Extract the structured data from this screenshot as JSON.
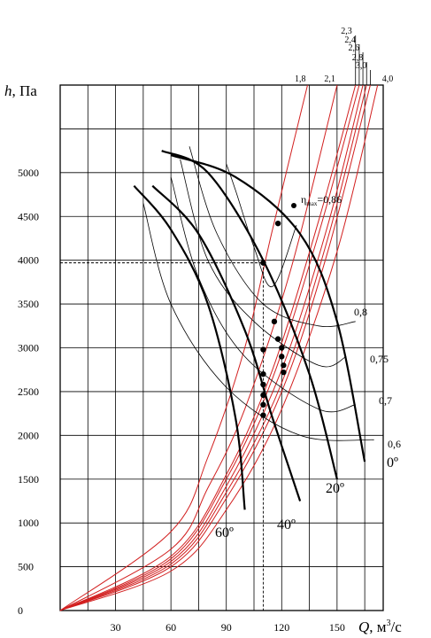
{
  "chart_data": {
    "type": "line",
    "xlabel": {
      "symbol": "Q",
      "unit": ", м",
      "sup": "3",
      "unit_tail": "/с"
    },
    "ylabel": {
      "symbol": "h",
      "unit": ", Па"
    },
    "xlim": [
      0,
      175
    ],
    "ylim": [
      0,
      6000
    ],
    "x_ticks": [
      "30",
      "60",
      "90",
      "120",
      "150"
    ],
    "y_ticks": [
      "0",
      "500",
      "1000",
      "1500",
      "2000",
      "2500",
      "3000",
      "3500",
      "4000",
      "4500",
      "5000"
    ],
    "grid": true,
    "colors": {
      "network": "#d21f1f",
      "blade": "#000000",
      "efficiency": "#000000"
    },
    "network_curves": [
      {
        "label": "1,8",
        "points": [
          [
            0,
            0
          ],
          [
            60,
            900
          ],
          [
            80,
            1750
          ],
          [
            100,
            3000
          ],
          [
            115,
            4350
          ],
          [
            134,
            6000
          ]
        ]
      },
      {
        "label": "2,1",
        "points": [
          [
            0,
            0
          ],
          [
            60,
            700
          ],
          [
            80,
            1400
          ],
          [
            100,
            2300
          ],
          [
            125,
            3900
          ],
          [
            150,
            6000
          ]
        ]
      },
      {
        "label": "2,3",
        "points": [
          [
            0,
            0
          ],
          [
            60,
            620
          ],
          [
            90,
            1550
          ],
          [
            115,
            2750
          ],
          [
            140,
            4450
          ],
          [
            160,
            6000
          ]
        ]
      },
      {
        "label": "2,4",
        "points": [
          [
            0,
            0
          ],
          [
            60,
            590
          ],
          [
            90,
            1500
          ],
          [
            115,
            2650
          ],
          [
            140,
            4300
          ],
          [
            162,
            6000
          ]
        ]
      },
      {
        "label": "2,6",
        "points": [
          [
            0,
            0
          ],
          [
            60,
            560
          ],
          [
            90,
            1420
          ],
          [
            120,
            2750
          ],
          [
            145,
            4400
          ],
          [
            164,
            6000
          ]
        ]
      },
      {
        "label": "2,8",
        "points": [
          [
            0,
            0
          ],
          [
            60,
            530
          ],
          [
            90,
            1350
          ],
          [
            120,
            2600
          ],
          [
            145,
            4250
          ],
          [
            166,
            6000
          ]
        ]
      },
      {
        "label": "3,0",
        "points": [
          [
            0,
            0
          ],
          [
            60,
            500
          ],
          [
            90,
            1280
          ],
          [
            120,
            2500
          ],
          [
            145,
            4100
          ],
          [
            168,
            6000
          ]
        ]
      },
      {
        "label": "4,0",
        "points": [
          [
            0,
            0
          ],
          [
            60,
            450
          ],
          [
            90,
            1150
          ],
          [
            120,
            2300
          ],
          [
            150,
            4100
          ],
          [
            172,
            6000
          ]
        ]
      }
    ],
    "blade_curves": [
      {
        "label": "0º",
        "points": [
          [
            60,
            5200
          ],
          [
            95,
            4950
          ],
          [
            130,
            4300
          ],
          [
            150,
            3300
          ],
          [
            165,
            1700
          ]
        ]
      },
      {
        "label": "20º",
        "points": [
          [
            55,
            5250
          ],
          [
            80,
            5000
          ],
          [
            110,
            4000
          ],
          [
            135,
            2700
          ],
          [
            150,
            1500
          ]
        ]
      },
      {
        "label": "40º",
        "points": [
          [
            50,
            4850
          ],
          [
            75,
            4300
          ],
          [
            100,
            3200
          ],
          [
            115,
            2200
          ],
          [
            130,
            1250
          ]
        ]
      },
      {
        "label": "60º",
        "points": [
          [
            40,
            4850
          ],
          [
            60,
            4350
          ],
          [
            80,
            3500
          ],
          [
            95,
            2200
          ],
          [
            100,
            1150
          ]
        ]
      }
    ],
    "efficiency_curves": [
      {
        "label": "η_max=0,86",
        "points": [
          [
            90,
            5100
          ],
          [
            95,
            4800
          ],
          [
            105,
            4150
          ],
          [
            115,
            3700
          ],
          [
            128,
            4400
          ]
        ]
      },
      {
        "label": "0,8",
        "points": [
          [
            70,
            5300
          ],
          [
            85,
            4300
          ],
          [
            110,
            3500
          ],
          [
            140,
            3250
          ],
          [
            160,
            3300
          ]
        ]
      },
      {
        "label": "0,75",
        "points": [
          [
            65,
            5150
          ],
          [
            80,
            4000
          ],
          [
            105,
            3300
          ],
          [
            140,
            2800
          ],
          [
            155,
            2900
          ]
        ]
      },
      {
        "label": "0,7",
        "points": [
          [
            60,
            4950
          ],
          [
            75,
            3800
          ],
          [
            100,
            2900
          ],
          [
            140,
            2300
          ],
          [
            160,
            2350
          ]
        ]
      },
      {
        "label": "0,6",
        "points": [
          [
            45,
            4650
          ],
          [
            60,
            3500
          ],
          [
            90,
            2550
          ],
          [
            130,
            2000
          ],
          [
            170,
            1950
          ]
        ]
      }
    ],
    "operating_points": [
      [
        110,
        3970
      ],
      [
        110,
        2980
      ],
      [
        110,
        2700
      ],
      [
        110,
        2580
      ],
      [
        110,
        2460
      ],
      [
        110,
        2350
      ],
      [
        110,
        2230
      ],
      [
        118,
        4420
      ],
      [
        116,
        3300
      ],
      [
        118,
        3100
      ],
      [
        120,
        3000
      ],
      [
        120,
        2900
      ],
      [
        121,
        2800
      ],
      [
        121,
        2720
      ]
    ],
    "dashed_reference": {
      "x": 110,
      "y": 3970
    }
  }
}
